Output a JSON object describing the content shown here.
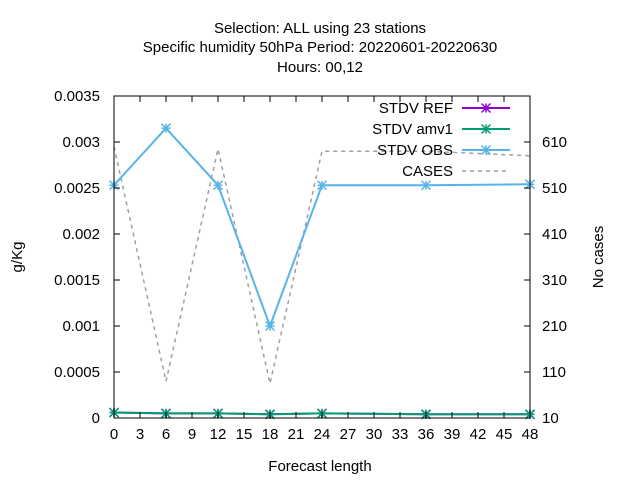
{
  "chart_data": {
    "type": "line",
    "title_lines": [
      "Selection: ALL using    23 stations",
      "Specific humidity 50hPa   Period: 20220601-20220630",
      "Hours:  00,12"
    ],
    "xlabel": "Forecast length",
    "ylabel": "g/Kg",
    "y2label": "No cases",
    "xlim": [
      0,
      48
    ],
    "ylim": [
      0,
      0.0035
    ],
    "y2lim": [
      10,
      710
    ],
    "x_ticks": [
      "0",
      "3",
      "6",
      "9",
      "12",
      "15",
      "18",
      "21",
      "24",
      "27",
      "30",
      "33",
      "36",
      "39",
      "42",
      "45",
      "48"
    ],
    "y_ticks": [
      "0",
      "0.0005",
      "0.001",
      "0.0015",
      "0.002",
      "0.0025",
      "0.003",
      "0.0035"
    ],
    "y2_ticks": [
      "10",
      "110",
      "210",
      "310",
      "410",
      "510",
      "610"
    ],
    "legend_position": "top-right",
    "series": [
      {
        "name": "STDV REF",
        "axis": "y",
        "color": "#9400d3",
        "marker": "x-star",
        "x": [
          0,
          6,
          12,
          18,
          24,
          36,
          48
        ],
        "y": [
          6e-05,
          5e-05,
          5e-05,
          4e-05,
          5e-05,
          4e-05,
          4e-05
        ]
      },
      {
        "name": "STDV amv1",
        "axis": "y",
        "color": "#009e73",
        "marker": "x-star",
        "x": [
          0,
          6,
          12,
          18,
          24,
          36,
          48
        ],
        "y": [
          6e-05,
          5e-05,
          5e-05,
          4e-05,
          5e-05,
          4e-05,
          4e-05
        ]
      },
      {
        "name": "STDV OBS",
        "axis": "y",
        "color": "#56b4e9",
        "marker": "x-star",
        "x": [
          0,
          6,
          12,
          18,
          24,
          36,
          48
        ],
        "y": [
          0.00253,
          0.00315,
          0.00253,
          0.001,
          0.00253,
          0.00253,
          0.00254
        ]
      },
      {
        "name": "CASES",
        "axis": "y2",
        "color": "#a0a0a0",
        "dashed": true,
        "x": [
          0,
          6,
          12,
          18,
          24,
          36,
          48
        ],
        "y": [
          600,
          90,
          595,
          85,
          590,
          590,
          580
        ]
      }
    ]
  }
}
